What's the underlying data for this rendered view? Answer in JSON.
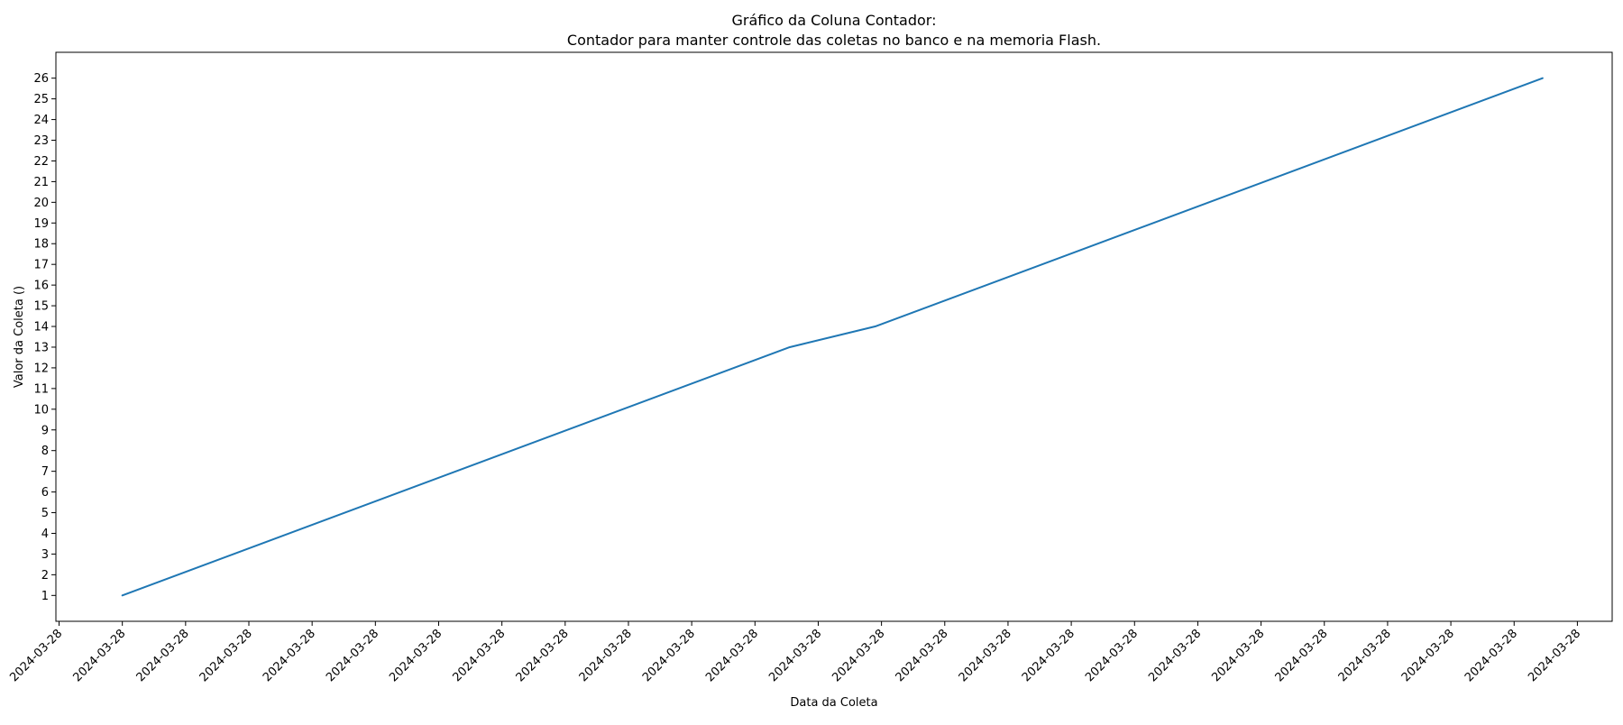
{
  "chart_data": {
    "type": "line",
    "title_lines": [
      "Gráfico da Coluna Contador:",
      "Contador para manter controle das coletas no banco e na memoria Flash."
    ],
    "xlabel": "Data da Coleta",
    "ylabel": "Valor da Coleta ()",
    "x_tick_labels": [
      "2024-03-28",
      "2024-03-28",
      "2024-03-28",
      "2024-03-28",
      "2024-03-28",
      "2024-03-28",
      "2024-03-28",
      "2024-03-28",
      "2024-03-28",
      "2024-03-28",
      "2024-03-28",
      "2024-03-28",
      "2024-03-28",
      "2024-03-28",
      "2024-03-28",
      "2024-03-28",
      "2024-03-28",
      "2024-03-28",
      "2024-03-28",
      "2024-03-28",
      "2024-03-28",
      "2024-03-28",
      "2024-03-28",
      "2024-03-28",
      "2024-03-28"
    ],
    "x_ticks": [
      0,
      1,
      2,
      3,
      4,
      5,
      6,
      7,
      8,
      9,
      10,
      11,
      12,
      13,
      14,
      15,
      16,
      17,
      18,
      19,
      20,
      21,
      22,
      23,
      24
    ],
    "xlim": [
      -0.05,
      24.55
    ],
    "y_ticks": [
      1,
      2,
      3,
      4,
      5,
      6,
      7,
      8,
      9,
      10,
      11,
      12,
      13,
      14,
      15,
      16,
      17,
      18,
      19,
      20,
      21,
      22,
      23,
      24,
      25,
      26
    ],
    "ylim": [
      -0.25,
      27.25
    ],
    "grid": false,
    "series": [
      {
        "color": "#1f77b4",
        "x": [
          1,
          11.55,
          12.9,
          23.45
        ],
        "y": [
          1,
          13,
          14,
          26
        ]
      }
    ]
  }
}
